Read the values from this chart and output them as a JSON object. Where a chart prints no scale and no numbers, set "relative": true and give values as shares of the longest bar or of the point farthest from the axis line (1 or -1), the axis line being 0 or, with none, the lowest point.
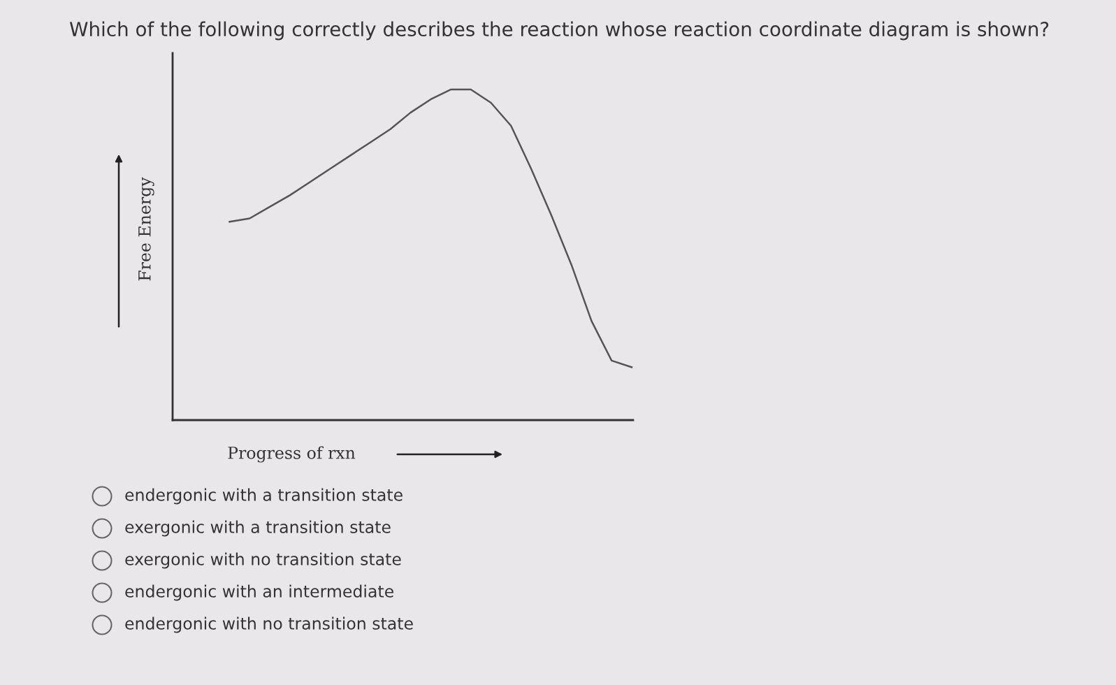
{
  "chart_data": {
    "type": "line",
    "relative": true,
    "title": "Which of the following correctly describes the reaction whose reaction coordinate diagram is shown?",
    "xlabel": "Progress of rxn",
    "ylabel": "Free Energy",
    "categories": [
      null,
      null,
      null,
      null,
      null,
      null,
      null,
      null,
      null,
      null,
      null,
      null,
      null,
      null,
      null,
      null,
      null,
      null,
      null,
      null,
      null
    ],
    "series": [
      {
        "color": "#555555",
        "values": [
          0.6,
          0.61,
          0.645,
          0.68,
          0.72,
          0.76,
          0.8,
          0.84,
          0.88,
          0.93,
          0.97,
          1.0,
          1.0,
          0.96,
          0.89,
          0.76,
          0.62,
          0.47,
          0.3,
          0.18,
          0.16
        ]
      }
    ],
    "annotations": [
      "endergonic with a transition state",
      "exergonic with a transition state",
      "exergonic with no transition state",
      "endergonic with an intermediate",
      "endergonic with no transition state"
    ],
    "marker": "none",
    "line_style": "solid"
  }
}
